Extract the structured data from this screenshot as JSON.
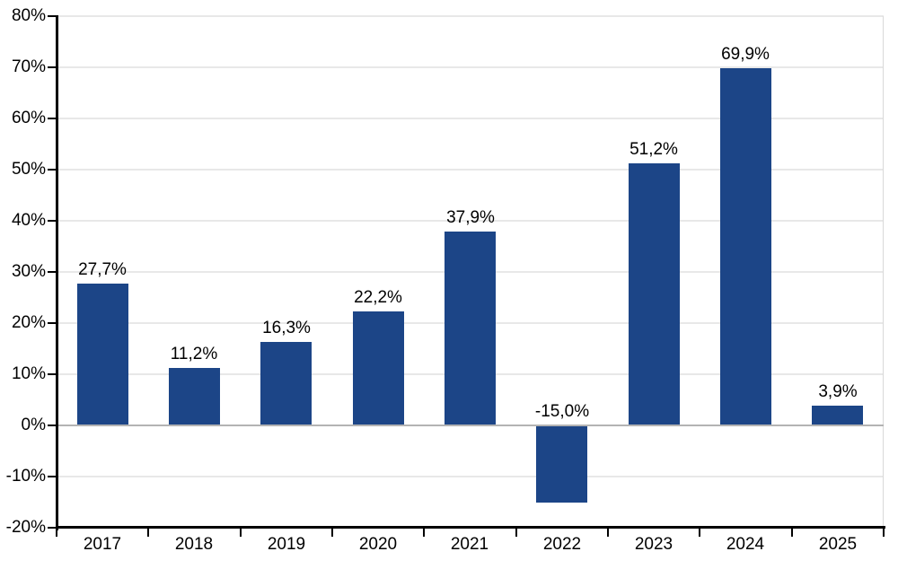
{
  "chart_data": {
    "type": "bar",
    "title": "",
    "xlabel": "",
    "ylabel": "",
    "categories": [
      "2017",
      "2018",
      "2019",
      "2020",
      "2021",
      "2022",
      "2023",
      "2024",
      "2025"
    ],
    "values": [
      27.7,
      11.2,
      16.3,
      22.2,
      37.9,
      -15.0,
      51.2,
      69.9,
      3.9
    ],
    "bar_labels": [
      "27,7%",
      "11,2%",
      "16,3%",
      "22,2%",
      "37,9%",
      "-15,0%",
      "51,2%",
      "69,9%",
      "3,9%"
    ],
    "ylim": [
      -20,
      80
    ],
    "ytick_step": 10,
    "ytick_labels": [
      "-20%",
      "-10%",
      "0%",
      "10%",
      "20%",
      "30%",
      "40%",
      "50%",
      "60%",
      "70%",
      "80%"
    ],
    "grid": true,
    "legend": false,
    "colors": {
      "bar": "#1c4587",
      "gridline": "#e8e8e8",
      "zero_line": "#b3b3b3",
      "axis": "#000000",
      "plot_right_border": "#d9d9d9",
      "text": "#000000",
      "background": "#ffffff"
    }
  }
}
